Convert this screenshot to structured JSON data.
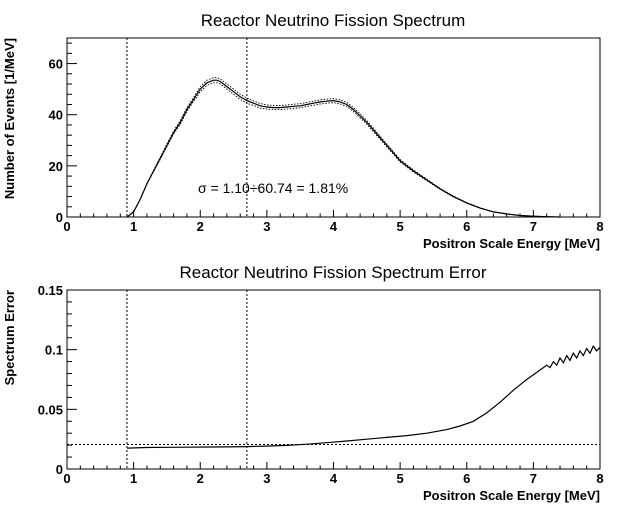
{
  "chart_data": [
    {
      "type": "line",
      "title": "Reactor Neutrino Fission Spectrum",
      "xlabel": "Positron Scale Energy [MeV]",
      "ylabel": "Number of Events [1/MeV]",
      "xlim": [
        0,
        8
      ],
      "ylim": [
        0,
        70
      ],
      "xticks": [
        "0",
        "1",
        "2",
        "3",
        "4",
        "5",
        "6",
        "7",
        "8"
      ],
      "yticks": [
        "0",
        "20",
        "40",
        "60"
      ],
      "annotation": "σ = 1.10÷60.74 = 1.81%",
      "vlines": [
        0.9,
        2.7
      ],
      "grid": false,
      "series": [
        {
          "style": "solid",
          "x": [
            0.9,
            1.0,
            1.1,
            1.2,
            1.3,
            1.4,
            1.5,
            1.6,
            1.7,
            1.8,
            1.9,
            2.0,
            2.1,
            2.2,
            2.25,
            2.3,
            2.4,
            2.5,
            2.6,
            2.7,
            2.8,
            2.9,
            3.0,
            3.1,
            3.2,
            3.3,
            3.4,
            3.5,
            3.6,
            3.7,
            3.8,
            3.9,
            4.0,
            4.1,
            4.2,
            4.3,
            4.4,
            4.5,
            4.6,
            4.7,
            4.8,
            4.9,
            5.0,
            5.2,
            5.4,
            5.6,
            5.8,
            6.0,
            6.2,
            6.4,
            6.6,
            6.8,
            7.0,
            7.2,
            7.4
          ],
          "y": [
            0,
            2,
            7,
            13,
            18,
            23,
            28,
            33,
            37,
            42,
            46,
            50,
            52.5,
            53.5,
            53.5,
            53,
            51,
            49,
            47,
            45.5,
            44.5,
            43.5,
            43,
            42.8,
            42.8,
            43,
            43.3,
            43.5,
            44,
            44.5,
            45,
            45.3,
            45.5,
            45,
            44,
            42,
            39.5,
            37,
            34,
            31,
            28,
            25,
            22,
            18,
            14.5,
            11,
            8,
            5.5,
            3.5,
            2,
            1.2,
            0.6,
            0.3,
            0.1,
            0
          ]
        },
        {
          "style": "dotted",
          "x": [
            0.9,
            1.0,
            1.1,
            1.2,
            1.3,
            1.4,
            1.5,
            1.6,
            1.7,
            1.8,
            1.9,
            2.0,
            2.1,
            2.2,
            2.25,
            2.3,
            2.4,
            2.5,
            2.6,
            2.7,
            2.8,
            2.9,
            3.0,
            3.1,
            3.2,
            3.3,
            3.4,
            3.5,
            3.6,
            3.7,
            3.8,
            3.9,
            4.0,
            4.1,
            4.2,
            4.3,
            4.4,
            4.5,
            4.6,
            4.7,
            4.8,
            4.9,
            5.0,
            5.2,
            5.4,
            5.6,
            5.8,
            6.0,
            6.2,
            6.4,
            6.6,
            6.8,
            7.0,
            7.2,
            7.4
          ],
          "y": [
            0,
            2,
            7,
            13,
            18.3,
            23.4,
            28.5,
            33.6,
            37.7,
            42.8,
            46.8,
            51,
            53.5,
            54.5,
            54.5,
            54,
            52,
            50,
            48,
            46.5,
            45.4,
            44.4,
            43.8,
            43.6,
            43.6,
            43.8,
            44.1,
            44.3,
            44.8,
            45.3,
            45.8,
            46.1,
            46.3,
            45.8,
            44.8,
            42.8,
            40.3,
            37.7,
            34.7,
            31.6,
            28.6,
            25.5,
            22.5,
            18.4,
            14.8,
            11.2,
            8.2,
            5.6,
            3.6,
            2,
            1.2,
            0.6,
            0.3,
            0.1,
            0
          ]
        },
        {
          "style": "dotted",
          "x": [
            0.9,
            1.0,
            1.1,
            1.2,
            1.3,
            1.4,
            1.5,
            1.6,
            1.7,
            1.8,
            1.9,
            2.0,
            2.1,
            2.2,
            2.25,
            2.3,
            2.4,
            2.5,
            2.6,
            2.7,
            2.8,
            2.9,
            3.0,
            3.1,
            3.2,
            3.3,
            3.4,
            3.5,
            3.6,
            3.7,
            3.8,
            3.9,
            4.0,
            4.1,
            4.2,
            4.3,
            4.4,
            4.5,
            4.6,
            4.7,
            4.8,
            4.9,
            5.0,
            5.2,
            5.4,
            5.6,
            5.8,
            6.0,
            6.2,
            6.4,
            6.6,
            6.8,
            7.0,
            7.2,
            7.4
          ],
          "y": [
            0,
            2,
            7,
            13,
            17.7,
            22.6,
            27.5,
            32.4,
            36.3,
            41.2,
            45.2,
            49,
            51.5,
            52.5,
            52.5,
            52,
            50,
            48,
            46,
            44.5,
            43.6,
            42.6,
            42.2,
            42,
            42,
            42.2,
            42.5,
            42.7,
            43.2,
            43.7,
            44.2,
            44.5,
            44.7,
            44.2,
            43.2,
            41.2,
            38.7,
            36.3,
            33.3,
            30.4,
            27.4,
            24.5,
            21.5,
            17.6,
            14.2,
            10.8,
            7.8,
            5.4,
            3.4,
            2,
            1.2,
            0.6,
            0.3,
            0.1,
            0
          ]
        }
      ]
    },
    {
      "type": "line",
      "title": "Reactor Neutrino Fission Spectrum Error",
      "xlabel": "Positron Scale Energy [MeV]",
      "ylabel": "Spectrum Error",
      "xlim": [
        0,
        8
      ],
      "ylim": [
        0,
        0.15
      ],
      "xticks": [
        "0",
        "1",
        "2",
        "3",
        "4",
        "5",
        "6",
        "7",
        "8"
      ],
      "yticks": [
        "0",
        "0.05",
        "0.1",
        "0.15"
      ],
      "vlines": [
        0.9,
        2.7
      ],
      "hline": 0.0205,
      "grid": false,
      "series": [
        {
          "style": "solid",
          "x": [
            0.9,
            1.2,
            1.5,
            1.8,
            2.1,
            2.4,
            2.7,
            3.0,
            3.3,
            3.6,
            3.9,
            4.2,
            4.5,
            4.8,
            5.1,
            5.4,
            5.7,
            5.9,
            6.1,
            6.3,
            6.5,
            6.7,
            6.9,
            7.0,
            7.1,
            7.15,
            7.2,
            7.25,
            7.3,
            7.35,
            7.4,
            7.45,
            7.5,
            7.55,
            7.6,
            7.65,
            7.7,
            7.75,
            7.8,
            7.85,
            7.9,
            7.95,
            8.0
          ],
          "y": [
            0.0175,
            0.018,
            0.0182,
            0.0183,
            0.0184,
            0.0185,
            0.0188,
            0.0192,
            0.0198,
            0.0208,
            0.022,
            0.0235,
            0.025,
            0.0265,
            0.028,
            0.03,
            0.033,
            0.036,
            0.04,
            0.047,
            0.056,
            0.066,
            0.075,
            0.079,
            0.083,
            0.085,
            0.087,
            0.085,
            0.09,
            0.087,
            0.093,
            0.089,
            0.095,
            0.091,
            0.097,
            0.093,
            0.099,
            0.095,
            0.101,
            0.097,
            0.103,
            0.099,
            0.102
          ]
        }
      ]
    }
  ]
}
